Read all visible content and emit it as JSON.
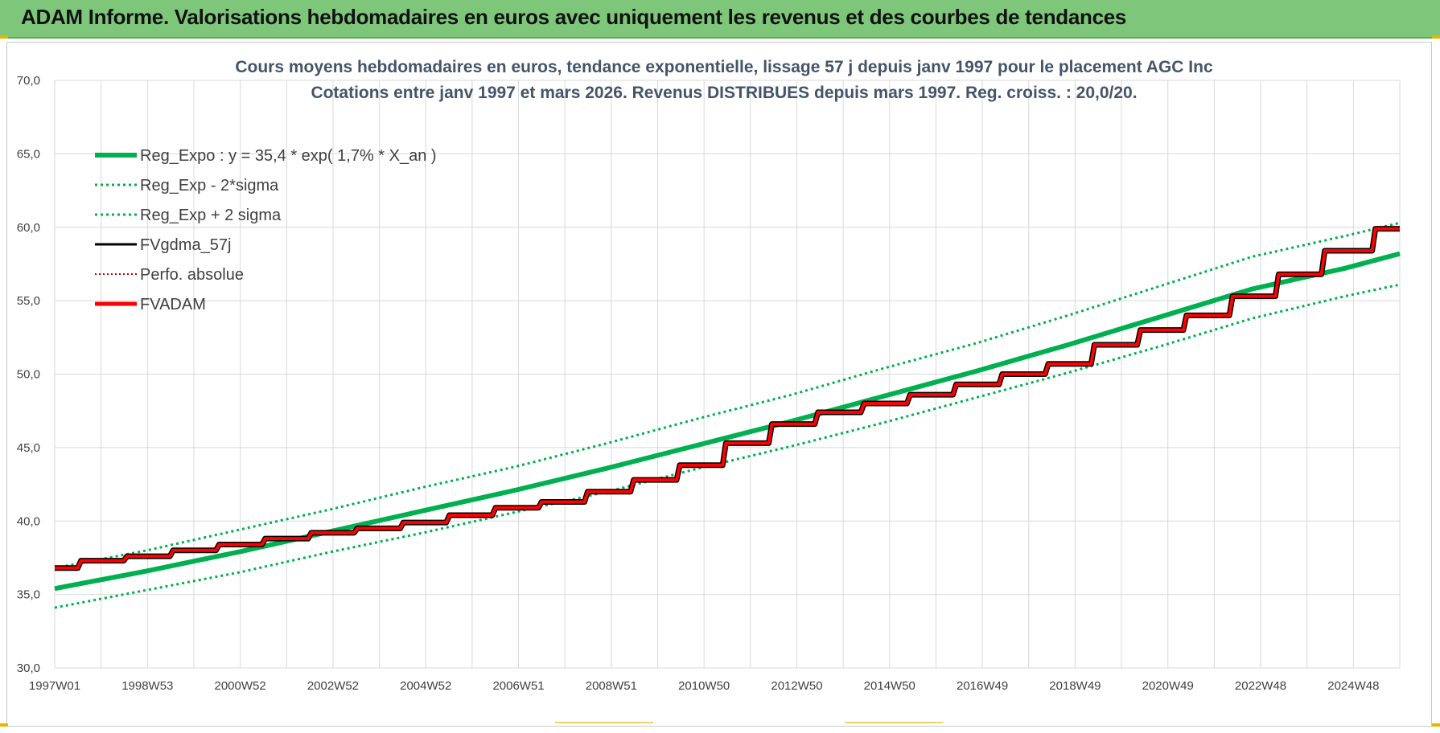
{
  "banner": {
    "title": "ADAM Informe. Valorisations hebdomadaires en euros avec uniquement les revenus et des courbes de tendances"
  },
  "colors": {
    "banner_bg": "#7dc67a",
    "trend": "#00b050",
    "fv": "#000000",
    "adam": "#ff0000",
    "title_text": "#44546a"
  },
  "chart_data": {
    "type": "line",
    "title_line1": "Cours moyens hebdomadaires en euros, tendance exponentielle, lissage 57 j depuis janv 1997  pour le placement AGC Inc",
    "title_line2": "Cotations entre janv 1997 et mars 2026. Revenus DISTRIBUES depuis mars 1997. Reg. croiss. : 20,0/20.",
    "xlabel": "",
    "ylabel": "",
    "x_range": [
      1997.0,
      2026.2
    ],
    "ylim": [
      30,
      70
    ],
    "y_ticks": [
      "30,0",
      "35,0",
      "40,0",
      "45,0",
      "50,0",
      "55,0",
      "60,0",
      "65,0",
      "70,0"
    ],
    "x_ticks": [
      "1997W01",
      "1998W53",
      "2000W52",
      "2002W52",
      "2004W52",
      "2006W51",
      "2008W51",
      "2010W50",
      "2012W50",
      "2014W50",
      "2016W49",
      "2018W49",
      "2020W49",
      "2022W48",
      "2024W48"
    ],
    "grid": true,
    "legend_position": "top-left",
    "legend": [
      {
        "label": "Reg_Expo : y = 35,4 * exp( 1,7% *  X_an )",
        "style": "thick-solid",
        "color": "#00b050"
      },
      {
        "label": "Reg_Exp - 2*sigma",
        "style": "dotted",
        "color": "#00b050"
      },
      {
        "label": "Reg_Exp + 2 sigma",
        "style": "dotted",
        "color": "#00b050"
      },
      {
        "label": "FVgdma_57j",
        "style": "solid",
        "color": "#000000"
      },
      {
        "label": "Perfo. absolue",
        "style": "dotted",
        "color": "#c00000"
      },
      {
        "label": "FVADAM",
        "style": "thick-solid",
        "color": "#ff0000"
      }
    ],
    "series": [
      {
        "name": "Reg_Expo : y = 35,4 * exp( 1,7% *  X_an )",
        "x": [
          1997.0,
          1999.0,
          2001.0,
          2003.0,
          2005.0,
          2007.0,
          2009.0,
          2011.0,
          2013.0,
          2015.0,
          2017.0,
          2019.0,
          2021.0,
          2023.0,
          2025.0,
          2026.2
        ],
        "values": [
          35.4,
          36.6,
          37.9,
          39.3,
          40.7,
          42.1,
          43.6,
          45.2,
          46.8,
          48.5,
          50.2,
          52.0,
          53.9,
          55.8,
          57.2,
          58.2
        ]
      },
      {
        "name": "Reg_Exp - 2*sigma",
        "x": [
          1997.0,
          1999.0,
          2001.0,
          2003.0,
          2005.0,
          2007.0,
          2009.0,
          2011.0,
          2013.0,
          2015.0,
          2017.0,
          2019.0,
          2021.0,
          2023.0,
          2025.0,
          2026.2
        ],
        "values": [
          34.1,
          35.3,
          36.5,
          37.9,
          39.2,
          40.6,
          42.0,
          43.6,
          45.1,
          46.7,
          48.4,
          50.1,
          51.9,
          53.8,
          55.3,
          56.1
        ]
      },
      {
        "name": "Reg_Exp + 2 sigma",
        "x": [
          1997.0,
          1999.0,
          2001.0,
          2003.0,
          2005.0,
          2007.0,
          2009.0,
          2011.0,
          2013.0,
          2015.0,
          2017.0,
          2019.0,
          2021.0,
          2023.0,
          2025.0,
          2026.2
        ],
        "values": [
          36.8,
          38.0,
          39.4,
          40.8,
          42.3,
          43.7,
          45.3,
          47.0,
          48.6,
          50.4,
          52.1,
          54.0,
          56.0,
          58.0,
          59.4,
          60.3
        ]
      },
      {
        "name": "FVgdma_57j",
        "x": [
          1997.0,
          1998.0,
          1999.0,
          2000.0,
          2001.0,
          2002.0,
          2003.0,
          2004.0,
          2005.0,
          2006.0,
          2007.0,
          2008.0,
          2009.0,
          2010.0,
          2011.0,
          2012.0,
          2013.0,
          2014.0,
          2015.0,
          2016.0,
          2017.0,
          2018.0,
          2019.0,
          2020.0,
          2021.0,
          2022.0,
          2023.0,
          2024.0,
          2025.0,
          2026.2
        ],
        "values": [
          36.8,
          37.3,
          37.6,
          38.0,
          38.4,
          38.8,
          39.2,
          39.5,
          39.9,
          40.4,
          40.9,
          41.3,
          42.0,
          42.8,
          43.8,
          45.3,
          46.6,
          47.4,
          48.0,
          48.6,
          49.3,
          50.0,
          50.7,
          52.0,
          53.0,
          54.0,
          55.3,
          56.8,
          58.4,
          59.9
        ]
      },
      {
        "name": "Perfo. absolue",
        "x": [
          1997.0,
          1998.0,
          1999.0,
          2000.0,
          2001.0,
          2002.0,
          2003.0,
          2004.0,
          2005.0,
          2006.0,
          2007.0,
          2008.0,
          2009.0,
          2010.0,
          2011.0,
          2012.0,
          2013.0,
          2014.0,
          2015.0,
          2016.0,
          2017.0,
          2018.0,
          2019.0,
          2020.0,
          2021.0,
          2022.0,
          2023.0,
          2024.0,
          2025.0,
          2026.2
        ],
        "values": [
          36.8,
          37.3,
          37.6,
          38.0,
          38.4,
          38.8,
          39.2,
          39.5,
          39.9,
          40.4,
          40.9,
          41.3,
          42.0,
          42.8,
          43.8,
          45.3,
          46.6,
          47.4,
          48.0,
          48.6,
          49.3,
          50.0,
          50.7,
          52.0,
          53.0,
          54.0,
          55.3,
          56.8,
          58.4,
          59.9
        ]
      },
      {
        "name": "FVADAM",
        "x": [
          1997.0,
          1998.0,
          1999.0,
          2000.0,
          2001.0,
          2002.0,
          2003.0,
          2004.0,
          2005.0,
          2006.0,
          2007.0,
          2008.0,
          2009.0,
          2010.0,
          2011.0,
          2012.0,
          2013.0,
          2014.0,
          2015.0,
          2016.0,
          2017.0,
          2018.0,
          2019.0,
          2020.0,
          2021.0,
          2022.0,
          2023.0,
          2024.0,
          2025.0,
          2026.2
        ],
        "values": [
          36.8,
          37.3,
          37.6,
          38.0,
          38.4,
          38.8,
          39.2,
          39.5,
          39.9,
          40.4,
          40.9,
          41.3,
          42.0,
          42.8,
          43.8,
          45.3,
          46.6,
          47.4,
          48.0,
          48.6,
          49.3,
          50.0,
          50.7,
          52.0,
          53.0,
          54.0,
          55.3,
          56.8,
          58.4,
          59.9
        ]
      }
    ]
  }
}
